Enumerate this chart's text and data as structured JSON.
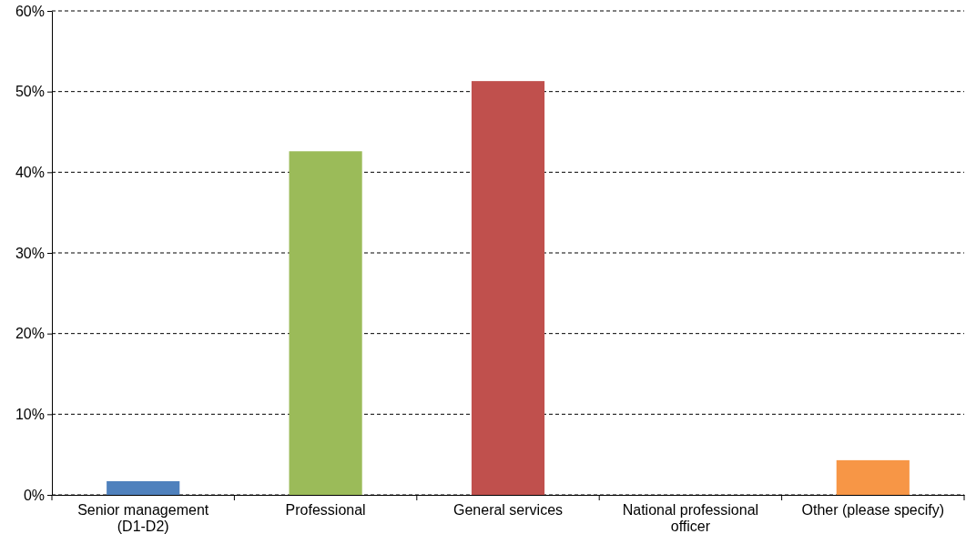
{
  "chart_data": {
    "type": "bar",
    "categories": [
      "Senior management (D1-D2)",
      "Professional",
      "General services",
      "National professional officer",
      "Other (please specify)"
    ],
    "values": [
      1.7,
      42.6,
      51.3,
      0,
      4.3
    ],
    "colors": [
      "#4f81bd",
      "#9bbb59",
      "#c0504d",
      "#8064a2",
      "#f79646"
    ],
    "ylim": [
      0,
      60
    ],
    "yticks": [
      {
        "value": 0,
        "label": "0%"
      },
      {
        "value": 10,
        "label": "10%"
      },
      {
        "value": 20,
        "label": "20%"
      },
      {
        "value": 30,
        "label": "30%"
      },
      {
        "value": 40,
        "label": "40%"
      },
      {
        "value": 50,
        "label": "50%"
      },
      {
        "value": 60,
        "label": "60%"
      }
    ],
    "grid": "y"
  }
}
